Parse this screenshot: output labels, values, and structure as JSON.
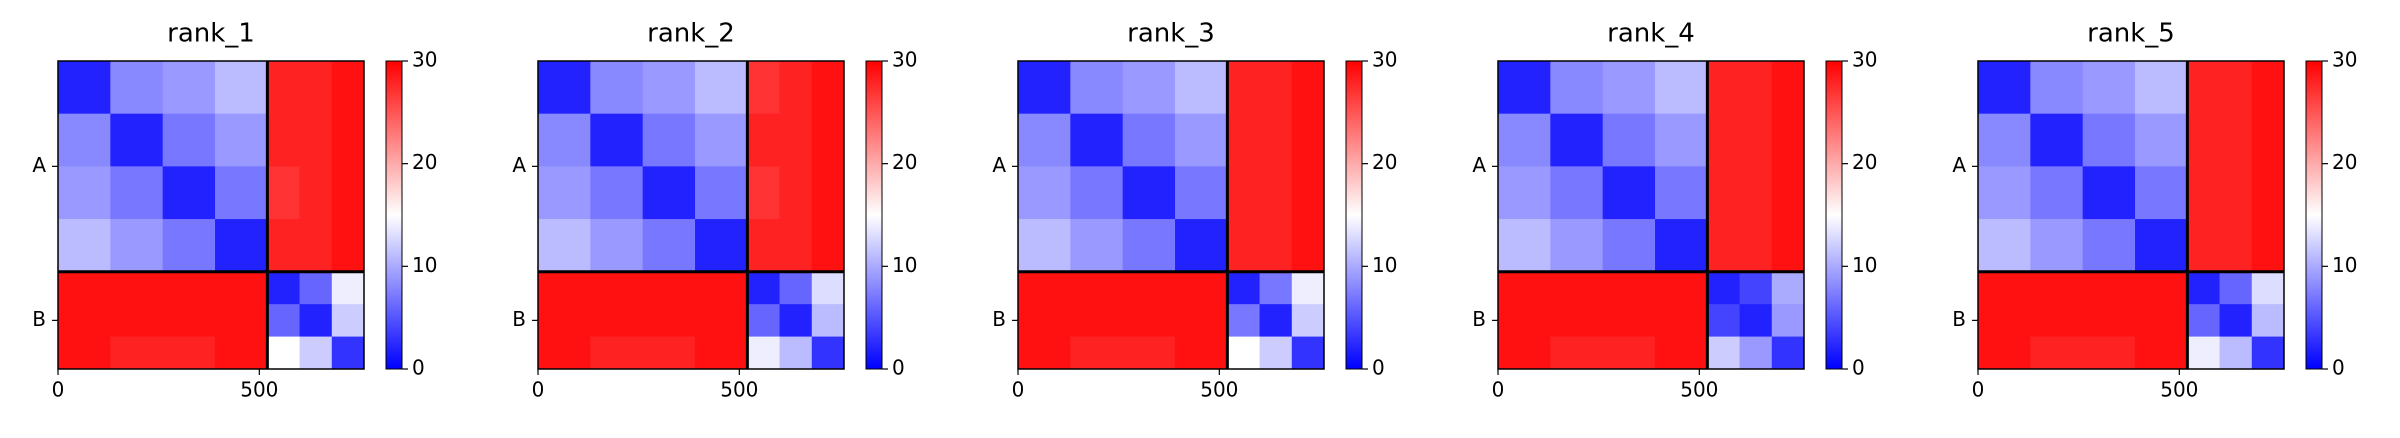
{
  "chart_data": [
    {
      "type": "heatmap",
      "title": "rank_1",
      "cmap": "bwr",
      "clim": [
        0,
        30
      ],
      "cticks": [
        0,
        10,
        20,
        30
      ],
      "xlim": [
        0,
        760
      ],
      "ylim": [
        760,
        0
      ],
      "xticks": [
        0,
        500
      ],
      "chain_breaks": [
        520
      ],
      "chain_labels": [
        "A",
        "B"
      ],
      "x_edges": [
        0,
        130,
        260,
        390,
        520,
        600,
        680,
        760
      ],
      "y_edges": [
        0,
        130,
        260,
        390,
        520,
        600,
        680,
        760
      ],
      "values": [
        [
          2,
          8,
          9,
          11,
          28,
          28,
          29
        ],
        [
          8,
          2,
          7,
          9,
          28,
          28,
          29
        ],
        [
          9,
          7,
          2,
          7,
          27,
          28,
          29
        ],
        [
          11,
          9,
          7,
          2,
          28,
          28,
          29
        ],
        [
          29,
          29,
          29,
          29,
          2,
          6,
          14
        ],
        [
          29,
          29,
          29,
          29,
          6,
          2,
          12
        ],
        [
          29,
          28,
          28,
          29,
          15,
          12,
          3
        ]
      ]
    },
    {
      "type": "heatmap",
      "title": "rank_2",
      "cmap": "bwr",
      "clim": [
        0,
        30
      ],
      "cticks": [
        0,
        10,
        20,
        30
      ],
      "xlim": [
        0,
        760
      ],
      "ylim": [
        760,
        0
      ],
      "xticks": [
        0,
        500
      ],
      "chain_breaks": [
        520
      ],
      "chain_labels": [
        "A",
        "B"
      ],
      "x_edges": [
        0,
        130,
        260,
        390,
        520,
        600,
        680,
        760
      ],
      "y_edges": [
        0,
        130,
        260,
        390,
        520,
        600,
        680,
        760
      ],
      "values": [
        [
          2,
          8,
          9,
          11,
          27,
          28,
          29
        ],
        [
          8,
          2,
          7,
          9,
          28,
          28,
          29
        ],
        [
          9,
          7,
          2,
          7,
          27,
          28,
          29
        ],
        [
          11,
          9,
          7,
          2,
          28,
          28,
          29
        ],
        [
          29,
          29,
          29,
          29,
          2,
          6,
          13
        ],
        [
          29,
          29,
          29,
          29,
          6,
          2,
          11
        ],
        [
          29,
          28,
          28,
          29,
          14,
          11,
          3
        ]
      ]
    },
    {
      "type": "heatmap",
      "title": "rank_3",
      "cmap": "bwr",
      "clim": [
        0,
        30
      ],
      "cticks": [
        0,
        10,
        20,
        30
      ],
      "xlim": [
        0,
        760
      ],
      "ylim": [
        760,
        0
      ],
      "xticks": [
        0,
        500
      ],
      "chain_breaks": [
        520
      ],
      "chain_labels": [
        "A",
        "B"
      ],
      "x_edges": [
        0,
        130,
        260,
        390,
        520,
        600,
        680,
        760
      ],
      "y_edges": [
        0,
        130,
        260,
        390,
        520,
        600,
        680,
        760
      ],
      "values": [
        [
          2,
          8,
          9,
          11,
          28,
          28,
          29
        ],
        [
          8,
          2,
          7,
          9,
          28,
          28,
          29
        ],
        [
          9,
          7,
          2,
          7,
          28,
          28,
          29
        ],
        [
          11,
          9,
          7,
          2,
          28,
          28,
          29
        ],
        [
          29,
          29,
          29,
          29,
          2,
          7,
          14
        ],
        [
          29,
          29,
          29,
          29,
          7,
          2,
          12
        ],
        [
          29,
          28,
          28,
          29,
          15,
          12,
          3
        ]
      ]
    },
    {
      "type": "heatmap",
      "title": "rank_4",
      "cmap": "bwr",
      "clim": [
        0,
        30
      ],
      "cticks": [
        0,
        10,
        20,
        30
      ],
      "xlim": [
        0,
        760
      ],
      "ylim": [
        760,
        0
      ],
      "xticks": [
        0,
        500
      ],
      "chain_breaks": [
        520
      ],
      "chain_labels": [
        "A",
        "B"
      ],
      "x_edges": [
        0,
        130,
        260,
        390,
        520,
        600,
        680,
        760
      ],
      "y_edges": [
        0,
        130,
        260,
        390,
        520,
        600,
        680,
        760
      ],
      "values": [
        [
          2,
          8,
          9,
          11,
          28,
          28,
          29
        ],
        [
          8,
          2,
          7,
          9,
          28,
          28,
          29
        ],
        [
          9,
          7,
          2,
          7,
          28,
          28,
          29
        ],
        [
          11,
          9,
          7,
          2,
          28,
          28,
          29
        ],
        [
          29,
          29,
          29,
          29,
          2,
          4,
          10
        ],
        [
          29,
          29,
          29,
          29,
          4,
          2,
          9
        ],
        [
          29,
          28,
          28,
          29,
          12,
          9,
          3
        ]
      ]
    },
    {
      "type": "heatmap",
      "title": "rank_5",
      "cmap": "bwr",
      "clim": [
        0,
        30
      ],
      "cticks": [
        0,
        10,
        20,
        30
      ],
      "xlim": [
        0,
        760
      ],
      "ylim": [
        760,
        0
      ],
      "xticks": [
        0,
        500
      ],
      "chain_breaks": [
        520
      ],
      "chain_labels": [
        "A",
        "B"
      ],
      "x_edges": [
        0,
        130,
        260,
        390,
        520,
        600,
        680,
        760
      ],
      "y_edges": [
        0,
        130,
        260,
        390,
        520,
        600,
        680,
        760
      ],
      "values": [
        [
          2,
          8,
          9,
          11,
          28,
          28,
          29
        ],
        [
          8,
          2,
          7,
          9,
          28,
          28,
          29
        ],
        [
          9,
          7,
          2,
          7,
          28,
          28,
          29
        ],
        [
          11,
          9,
          7,
          2,
          28,
          28,
          29
        ],
        [
          29,
          29,
          29,
          29,
          2,
          6,
          13
        ],
        [
          29,
          29,
          29,
          29,
          6,
          2,
          11
        ],
        [
          29,
          28,
          28,
          29,
          14,
          11,
          3
        ]
      ]
    }
  ]
}
